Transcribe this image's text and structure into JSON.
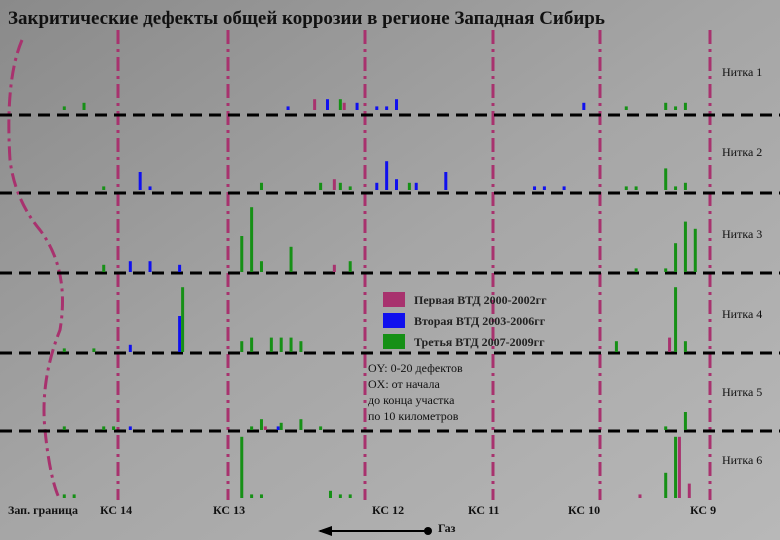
{
  "chart_data": {
    "type": "bar",
    "title": "Закритические дефекты общей коррозии в регионе Западная Сибирь",
    "series": [
      {
        "name": "Первая ВТД 2000-2002гг",
        "color": "#a8326e"
      },
      {
        "name": "Вторая ВТД 2003-2006гг",
        "color": "#1010ee"
      },
      {
        "name": "Третья ВТД 2007-2009гг",
        "color": "#169016"
      }
    ],
    "notes": [
      "OY: 0-20 дефектов",
      "OX: от начала",
      "до конца участка",
      "по 10 километров"
    ],
    "xlim": [
      0,
      71
    ],
    "ylim": [
      0,
      20
    ],
    "stations": [
      "Зап. граница",
      "КС 14",
      "КС 13",
      "КС 12",
      "КС 11",
      "КС 10",
      "КС 9"
    ],
    "flow_label": "Газ",
    "panels": [
      {
        "label": "Нитка 1",
        "series": [
          {
            "x": [
              31,
              34
            ],
            "values": [
              3,
              2
            ]
          },
          {
            "x": [
              28,
              32,
              35,
              37,
              38,
              39,
              58
            ],
            "values": [
              1,
              3,
              2,
              1,
              1,
              3,
              2
            ]
          },
          {
            "x": [
              5,
              7,
              33,
              62,
              66,
              67,
              68
            ],
            "values": [
              1,
              2,
              3,
              1,
              2,
              1,
              2
            ]
          }
        ]
      },
      {
        "label": "Нитка 2",
        "series": [
          {
            "x": [
              33
            ],
            "values": [
              3
            ]
          },
          {
            "x": [
              13,
              14,
              37,
              38,
              39,
              41,
              44,
              53,
              54,
              56
            ],
            "values": [
              5,
              1,
              2,
              8,
              3,
              2,
              5,
              1,
              1,
              1
            ]
          },
          {
            "x": [
              9,
              25,
              31,
              33,
              34,
              40,
              62,
              63,
              66,
              67,
              68
            ],
            "values": [
              1,
              2,
              2,
              2,
              1,
              2,
              1,
              1,
              6,
              1,
              2
            ]
          }
        ]
      },
      {
        "label": "Нитка 3",
        "series": [
          {
            "x": [
              33
            ],
            "values": [
              2
            ]
          },
          {
            "x": [
              12,
              14,
              17
            ],
            "values": [
              3,
              3,
              2
            ]
          },
          {
            "x": [
              9,
              23,
              24,
              25,
              28,
              34,
              63,
              66,
              67,
              68,
              69
            ],
            "values": [
              2,
              10,
              18,
              3,
              7,
              3,
              1,
              1,
              8,
              14,
              12
            ]
          }
        ]
      },
      {
        "label": "Нитка 4",
        "series": [
          {
            "x": [
              67
            ],
            "values": [
              4
            ]
          },
          {
            "x": [
              12,
              17
            ],
            "values": [
              2,
              10
            ]
          },
          {
            "x": [
              5,
              8,
              17,
              23,
              24,
              26,
              27,
              28,
              29,
              61,
              67,
              68
            ],
            "values": [
              1,
              1,
              18,
              3,
              4,
              4,
              4,
              4,
              3,
              3,
              18,
              3
            ]
          }
        ]
      },
      {
        "label": "Нитка 5",
        "series": [
          {
            "x": [
              26
            ],
            "values": [
              1
            ]
          },
          {
            "x": [
              12,
              27
            ],
            "values": [
              1,
              1
            ]
          },
          {
            "x": [
              5,
              9,
              10,
              24,
              25,
              27,
              29,
              31,
              66,
              68
            ],
            "values": [
              1,
              1,
              1,
              1,
              3,
              2,
              3,
              1,
              1,
              5
            ]
          }
        ]
      },
      {
        "label": "Нитка 6",
        "series": [
          {
            "x": [
              64,
              68,
              69
            ],
            "values": [
              1,
              17,
              4
            ]
          },
          {
            "x": [],
            "values": []
          },
          {
            "x": [
              5,
              6,
              23,
              24,
              25,
              32,
              33,
              34,
              66,
              67
            ],
            "values": [
              1,
              1,
              17,
              1,
              1,
              2,
              1,
              1,
              7,
              17
            ]
          }
        ]
      }
    ]
  }
}
